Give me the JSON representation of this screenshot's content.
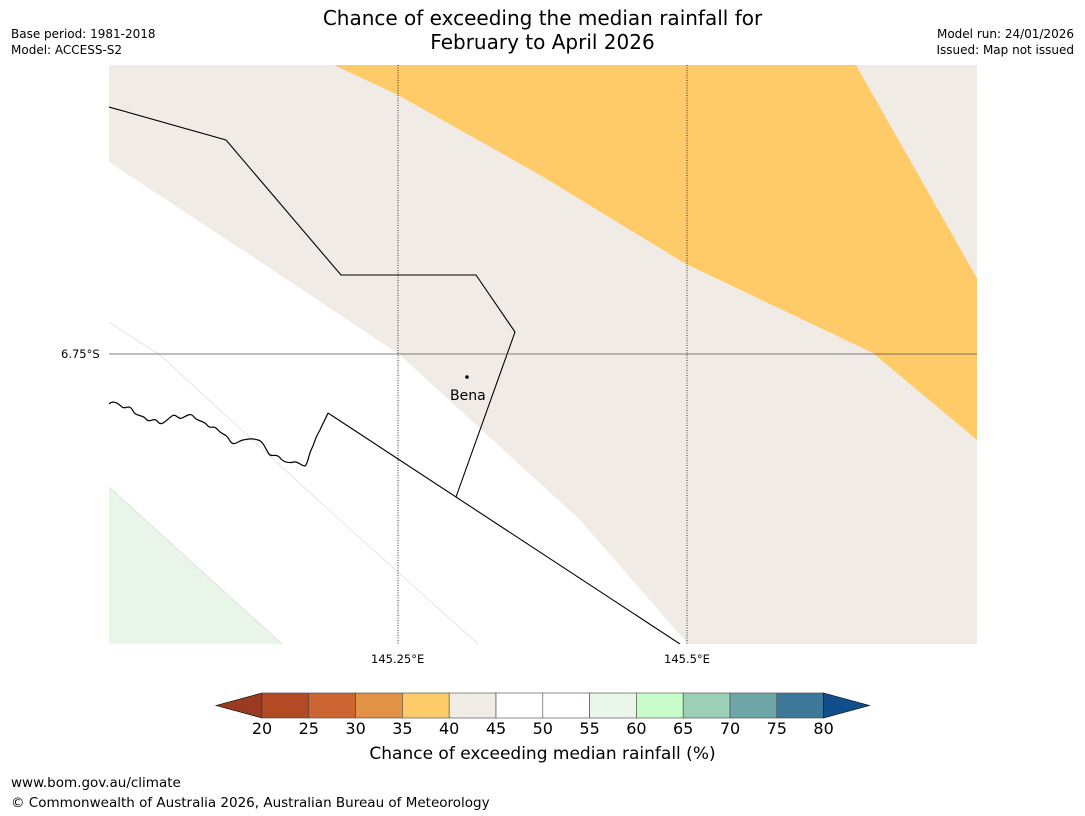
{
  "title": {
    "line1": "Chance of exceeding the median rainfall for",
    "line2": "February to April 2026"
  },
  "meta": {
    "base_period": "Base period: 1981-2018",
    "model": "Model: ACCESS-S2",
    "model_run": "Model run: 24/01/2026",
    "issued": "Issued: Map not issued"
  },
  "map": {
    "lat_label": "6.75°S",
    "lon_labels": [
      "145.25°E",
      "145.5°E"
    ],
    "place": "Bena",
    "colors": {
      "band_35_40": "#fecb68",
      "band_40_45": "#f1ebe5",
      "band_45_55": "#ffffff",
      "band_55_60": "#e9f5e8"
    }
  },
  "legend": {
    "title": "Chance of exceeding median rainfall (%)",
    "ticks": [
      "20",
      "25",
      "30",
      "35",
      "40",
      "45",
      "50",
      "55",
      "60",
      "65",
      "70",
      "75",
      "80"
    ],
    "swatches": [
      "#b24b24",
      "#cd6533",
      "#e19244",
      "#fecb68",
      "#f1ebe5",
      "#ffffff",
      "#ffffff",
      "#e9f5e8",
      "#c8fcc8",
      "#9dceb6",
      "#6ea5a6",
      "#3e7898"
    ],
    "low_extend_color": "#993a21",
    "high_extend_color": "#114f8c"
  },
  "footer": {
    "url": "www.bom.gov.au/climate",
    "copyright": "© Commonwealth of Australia 2026, Australian Bureau of Meteorology"
  }
}
